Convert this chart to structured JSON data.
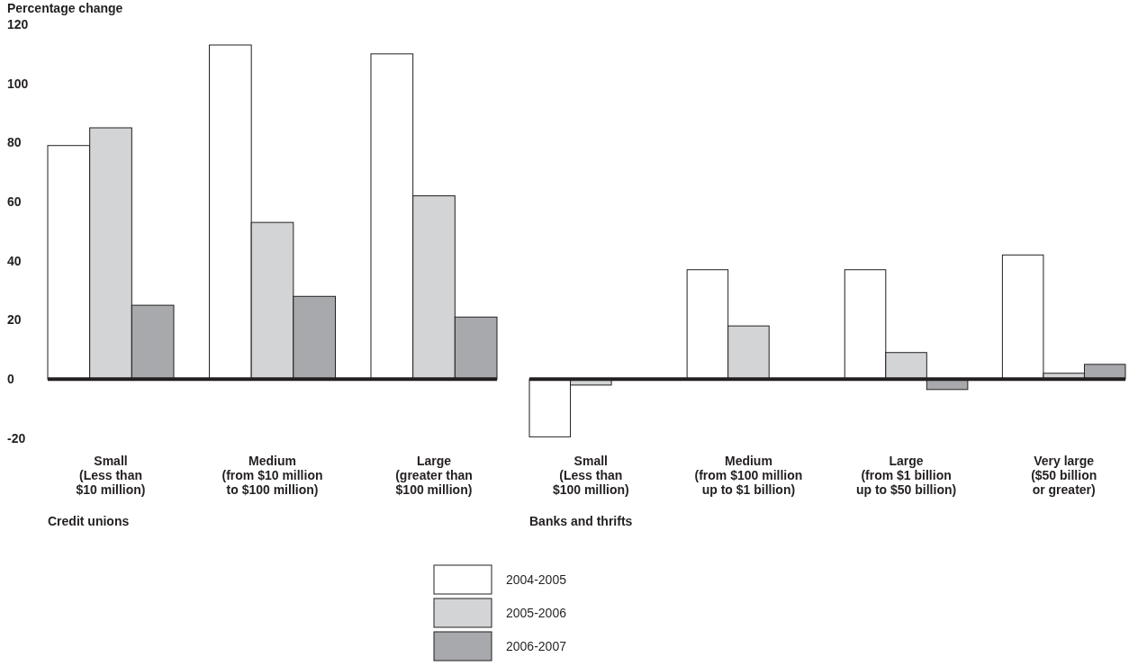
{
  "chart_data": [
    {
      "type": "bar",
      "ylabel": "Percentage change",
      "xlabel": "Credit unions",
      "categories": [
        "Small\n(Less than\n$10 million)",
        "Medium\n(from $10 million\nto $100 million)",
        "Large\n(greater than\n$100 million)"
      ],
      "series": [
        {
          "name": "2004-2005",
          "color": "#ffffff",
          "values": [
            79,
            113,
            110
          ]
        },
        {
          "name": "2005-2006",
          "color": "#d3d4d6",
          "values": [
            85,
            53,
            62
          ]
        },
        {
          "name": "2006-2007",
          "color": "#a7a9ac",
          "values": [
            25,
            28,
            21
          ]
        }
      ],
      "ylim": [
        -20,
        120
      ],
      "yticks": [
        -20,
        0,
        20,
        40,
        60,
        80,
        100,
        120
      ],
      "legend": "bottom"
    },
    {
      "type": "bar",
      "xlabel": "Banks and thrifts",
      "categories": [
        "Small\n(Less than\n$100 million)",
        "Medium\n(from $100 million\nup to $1 billion)",
        "Large\n(from $1 billion\nup to $50 billion)",
        "Very large\n($50 billion\nor greater)"
      ],
      "series": [
        {
          "color": "#ffffff",
          "values": [
            -19.5,
            37,
            37,
            42
          ]
        },
        {
          "color": "#d3d4d6",
          "values": [
            -2,
            18,
            9,
            2
          ]
        },
        {
          "color": "#a7a9ac",
          "values": [
            0,
            0,
            -3.5,
            5
          ]
        }
      ],
      "ylim": [
        -20,
        120
      ],
      "tick_labels": "x",
      "legend": false
    }
  ]
}
